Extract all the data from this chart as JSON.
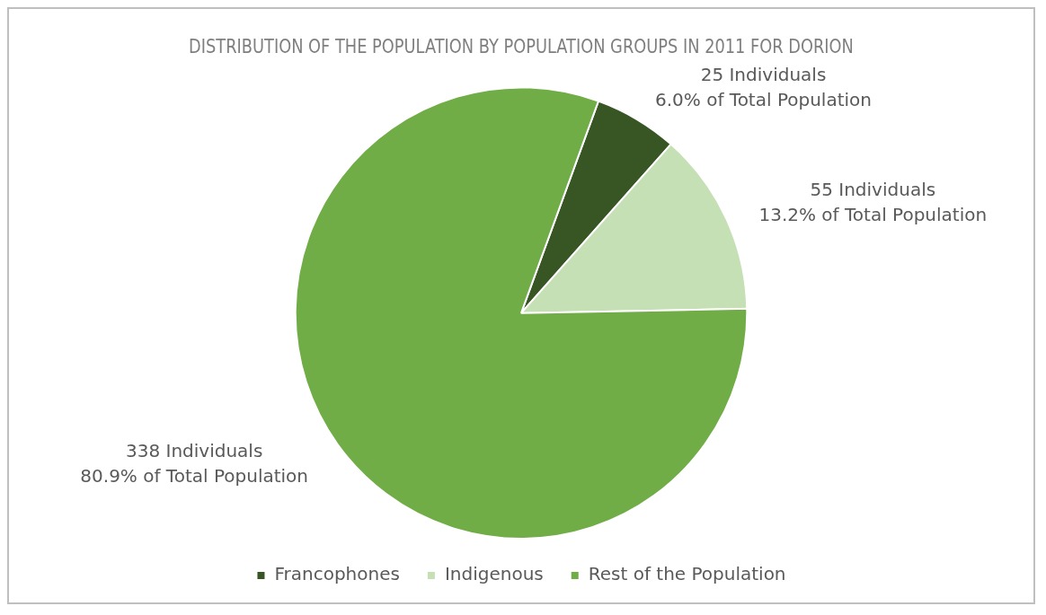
{
  "chart_data": {
    "type": "pie",
    "title": "DISTRIBUTION OF THE POPULATION BY POPULATION GROUPS IN 2011 FOR DORION",
    "categories": [
      "Francophones",
      "Indigenous",
      "Rest of the Population"
    ],
    "values": [
      25,
      55,
      338
    ],
    "colors": [
      "#375623",
      "#c5e0b4",
      "#70ad47"
    ],
    "value_labels": [
      "25 Individuals\n6.0% of Total Population",
      "55 Individuals\n13.2% of Total Population",
      "338 Individuals\n80.9% of Total Population"
    ],
    "legend": "bottom"
  }
}
